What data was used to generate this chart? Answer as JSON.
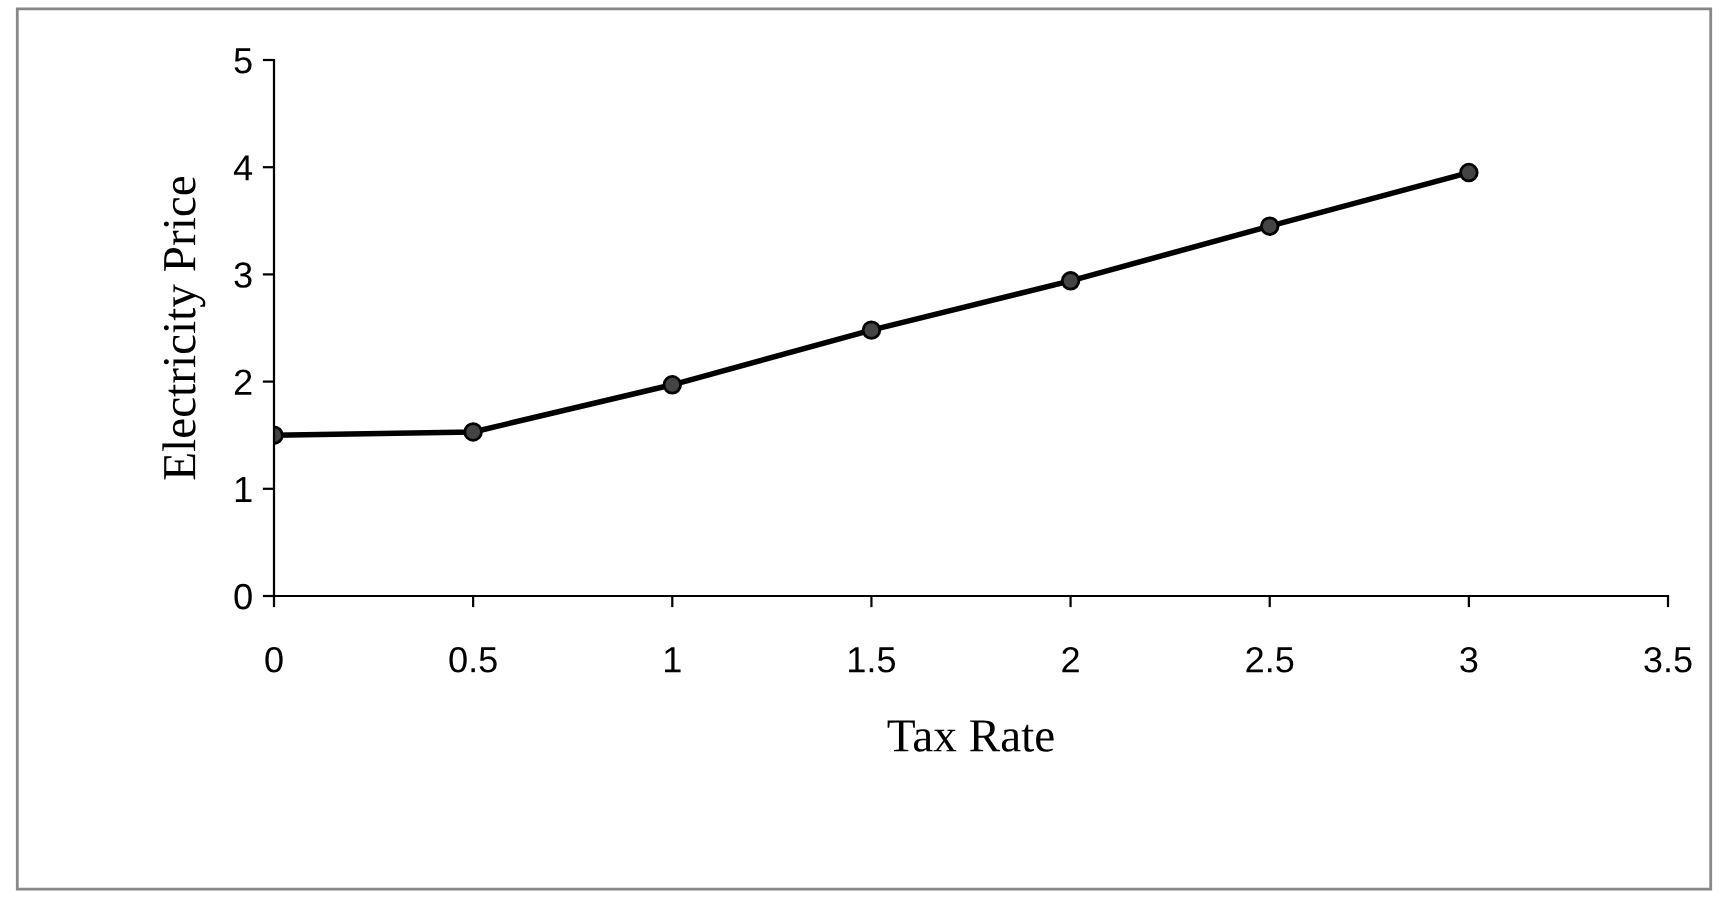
{
  "chart_data": {
    "type": "line",
    "xlabel": "Tax Rate",
    "ylabel": "Electricity Price",
    "x": [
      0,
      0.5,
      1,
      1.5,
      2,
      2.5,
      3
    ],
    "series": [
      {
        "color": "#000000",
        "values": [
          1.5,
          1.53,
          1.97,
          2.48,
          2.94,
          3.45,
          3.95
        ]
      }
    ],
    "xlim": [
      0,
      3.5
    ],
    "xticks": [
      0,
      0.5,
      1,
      1.5,
      2,
      2.5,
      3,
      3.5
    ],
    "ylim": [
      0,
      5
    ],
    "yticks": [
      0,
      1,
      2,
      3,
      4,
      5
    ],
    "marker": "circle",
    "line_style": "solid",
    "grid": false,
    "legend": false
  }
}
